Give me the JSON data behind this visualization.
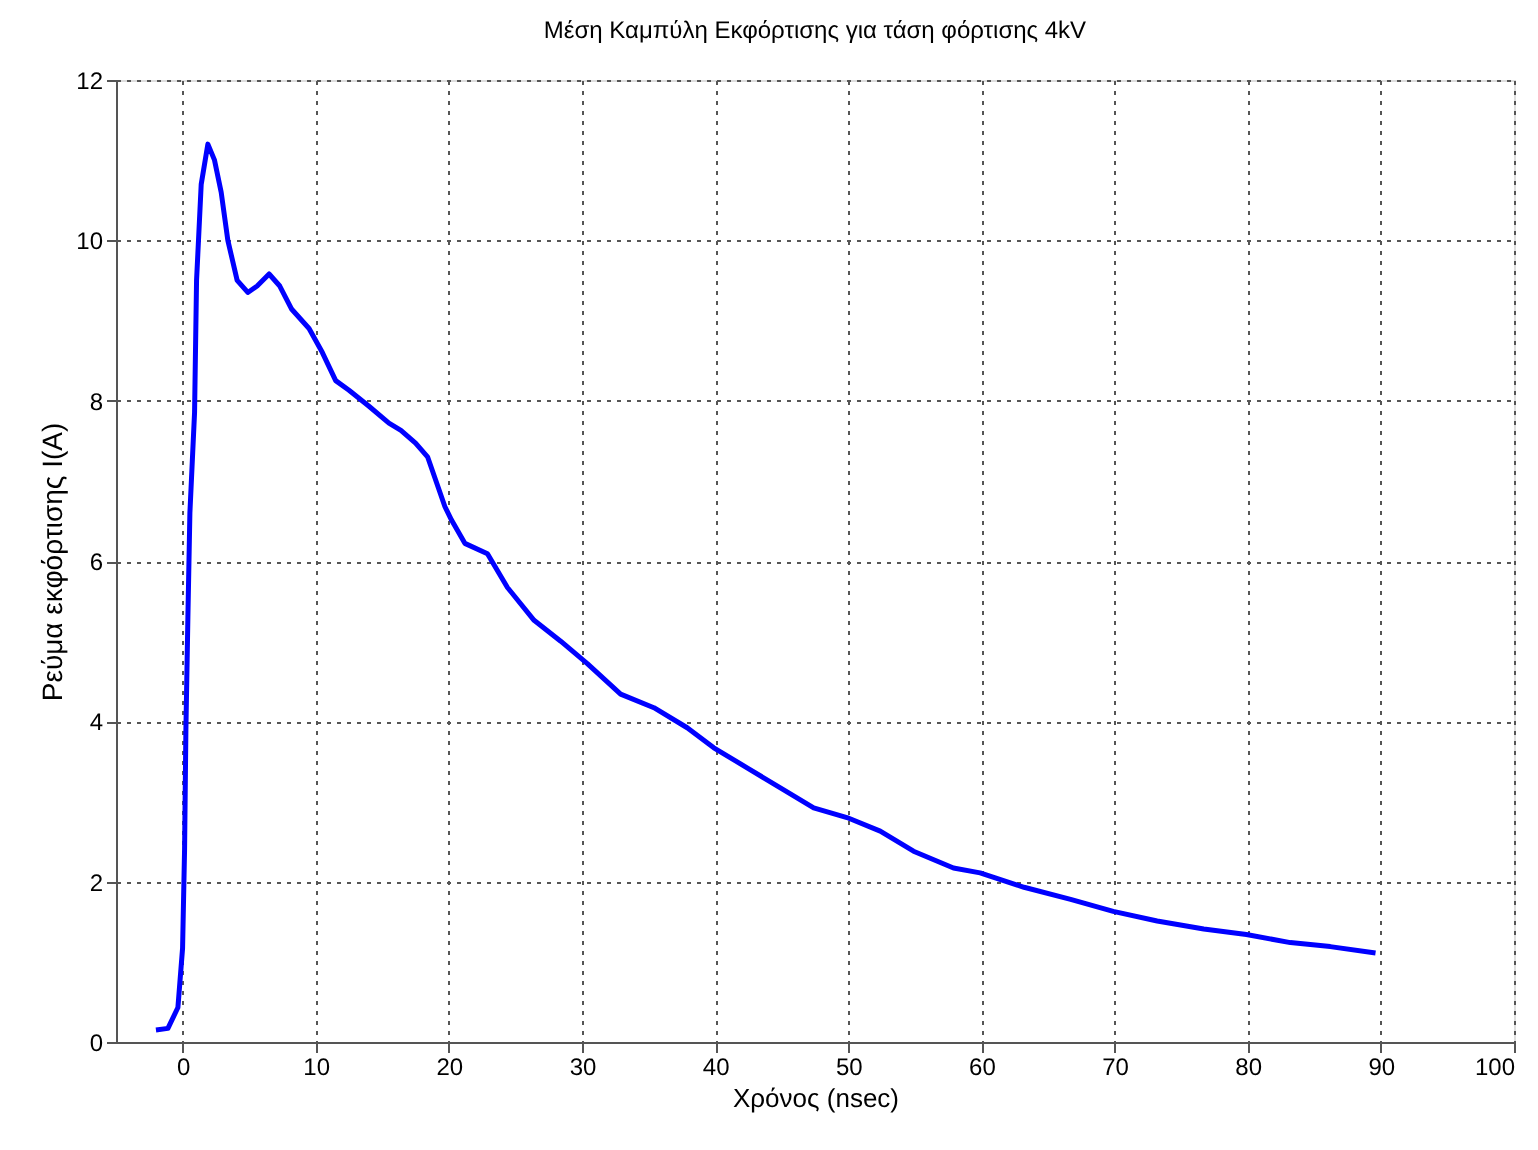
{
  "chart_data": {
    "type": "line",
    "title": "Μέση Καμπύλη Εκφόρτισης για τάση φόρτισης 4kV",
    "xlabel": "Χρόνος (nsec)",
    "ylabel": "Ρεύμα εκφόρτισης I(A)",
    "x": [
      -2.0,
      -1.1,
      -0.35,
      0.0,
      0.15,
      0.25,
      0.4,
      0.55,
      0.9,
      1.05,
      1.4,
      1.9,
      2.4,
      2.9,
      3.4,
      4.1,
      4.9,
      5.6,
      6.5,
      7.3,
      8.2,
      9.5,
      10.5,
      11.5,
      12.5,
      14.0,
      15.5,
      16.4,
      17.5,
      18.4,
      19.7,
      20.2,
      21.2,
      22.9,
      24.4,
      26.4,
      28.4,
      30.4,
      32.9,
      35.4,
      37.9,
      39.9,
      42.4,
      44.9,
      47.4,
      49.9,
      52.4,
      54.9,
      57.9,
      59.9,
      63.2,
      66.7,
      69.9,
      73.2,
      76.7,
      79.9,
      83.2,
      86.2,
      89.6
    ],
    "series": [
      {
        "color": "#0000ff",
        "values": [
          0.15,
          0.17,
          0.43,
          1.17,
          2.4,
          3.9,
          5.3,
          6.6,
          7.85,
          9.5,
          10.7,
          11.2,
          11.0,
          10.6,
          10.0,
          9.5,
          9.35,
          9.43,
          9.58,
          9.43,
          9.14,
          8.9,
          8.6,
          8.25,
          8.13,
          7.93,
          7.72,
          7.63,
          7.47,
          7.3,
          6.68,
          6.51,
          6.22,
          6.09,
          5.67,
          5.26,
          5.0,
          4.72,
          4.34,
          4.17,
          3.92,
          3.67,
          3.42,
          3.17,
          2.92,
          2.8,
          2.63,
          2.38,
          2.17,
          2.11,
          1.93,
          1.78,
          1.63,
          1.51,
          1.41,
          1.34,
          1.24,
          1.19,
          1.11
        ]
      }
    ],
    "xlim": [
      -5,
      100
    ],
    "xticks": [
      0,
      10,
      20,
      30,
      40,
      50,
      60,
      70,
      80,
      90,
      100
    ],
    "ylim": [
      0,
      12
    ],
    "yticks": [
      0,
      2,
      4,
      6,
      8,
      10,
      12
    ],
    "grid": true,
    "line_style": "solid",
    "marker": "none"
  }
}
